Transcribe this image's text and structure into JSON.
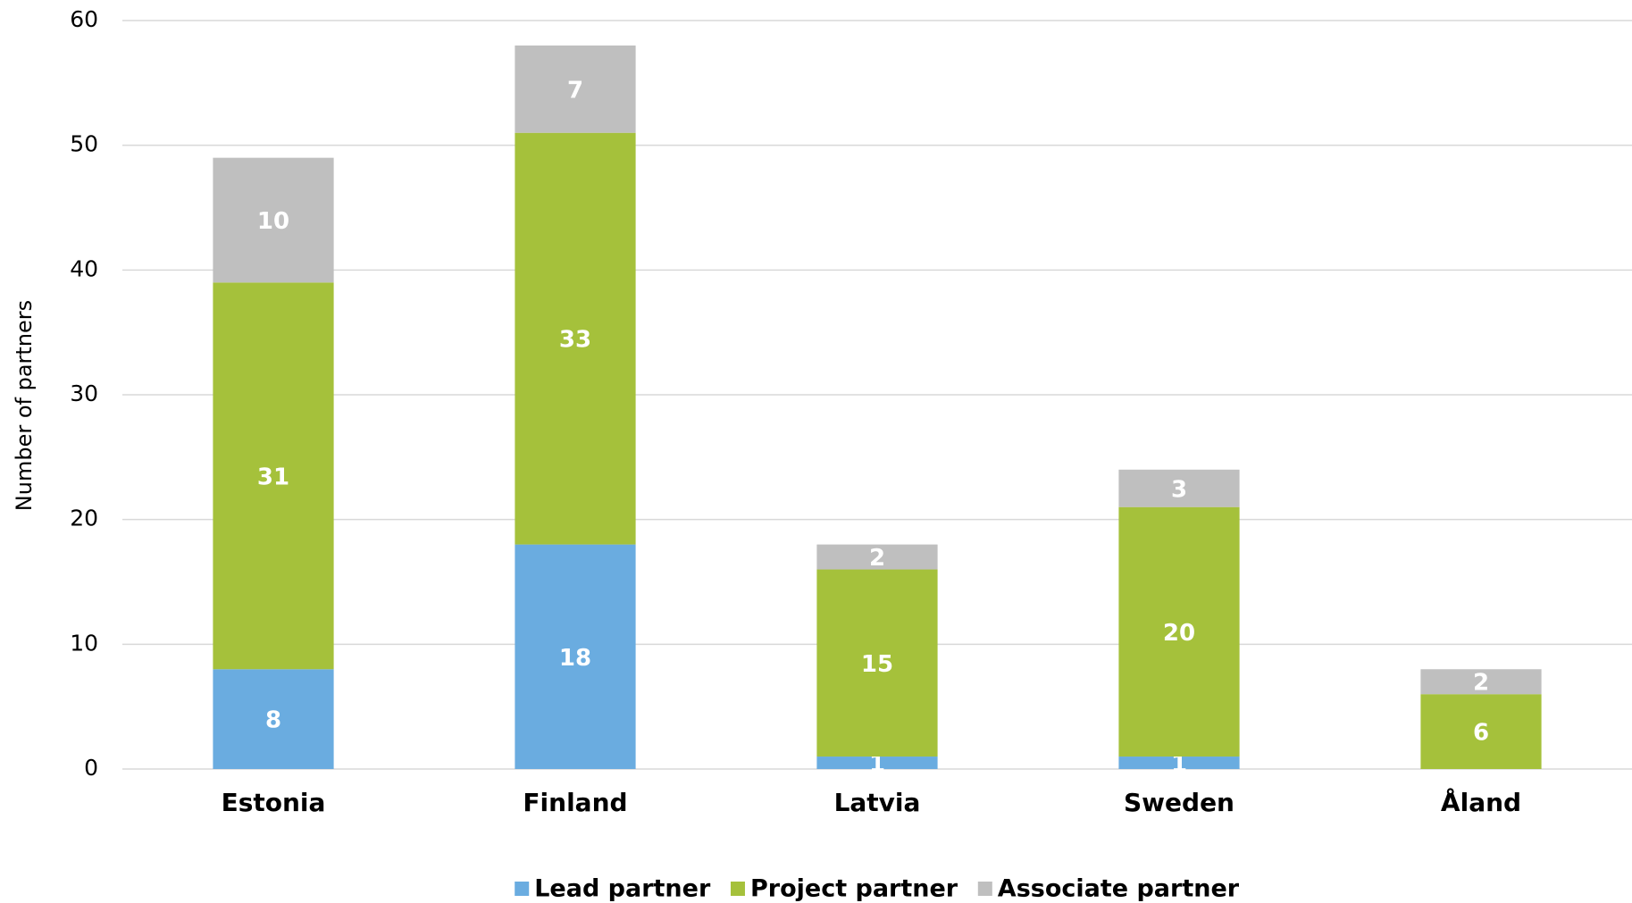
{
  "chart_data": {
    "type": "stacked_bar",
    "y_label": "Number of partners",
    "categories": [
      "Estonia",
      "Finland",
      "Latvia",
      "Sweden",
      "Åland"
    ],
    "series": [
      {
        "name": "Lead partner",
        "color": "#6aace0",
        "values": [
          8,
          18,
          1,
          1,
          0
        ]
      },
      {
        "name": "Project partner",
        "color": "#a5c13b",
        "values": [
          31,
          33,
          15,
          20,
          6
        ]
      },
      {
        "name": "Associate partner",
        "color": "#bfbfbf",
        "values": [
          10,
          7,
          2,
          3,
          2
        ]
      }
    ],
    "ylim": [
      0,
      60
    ],
    "yticks": [
      0,
      10,
      20,
      30,
      40,
      50,
      60
    ],
    "grid": true,
    "legend": "bottom"
  }
}
